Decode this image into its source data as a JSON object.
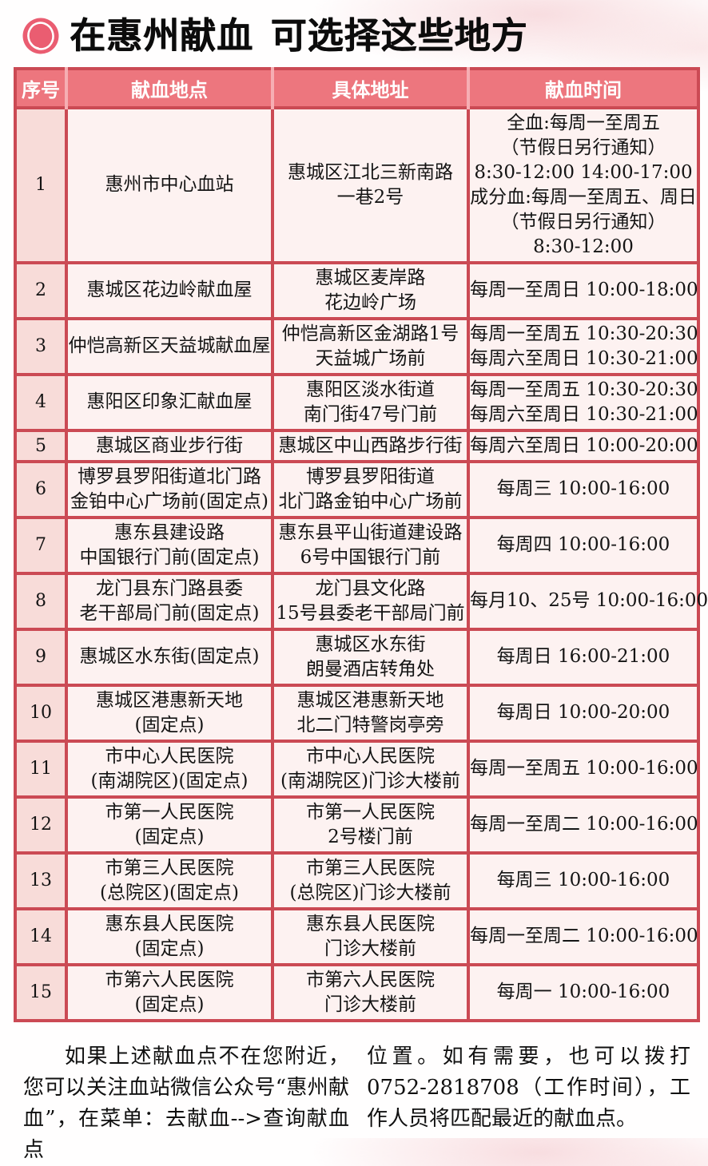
{
  "page": {
    "title": "在惠州献血 可选择这些地方"
  },
  "colors": {
    "border_red": "#cb4a54",
    "header_pink": "#ed767e",
    "header_divider": "#f6aeb3",
    "index_cell_pink": "#f8dcd9",
    "cell_pink": "#fdf2f1",
    "icon_pink": "#ea5d71"
  },
  "table": {
    "headers": [
      "序号",
      "献血地点",
      "具体地址",
      "献血时间"
    ],
    "rows": [
      {
        "no": "1",
        "place": "惠州市中心血站",
        "address": "惠城区江北三新南路\n一巷2号",
        "time": "全血:每周一至周五\n（节假日另行通知）\n8:30-12:00 14:00-17:00\n成分血:每周一至周五、周日\n（节假日另行通知）\n8:30-12:00"
      },
      {
        "no": "2",
        "place": "惠城区花边岭献血屋",
        "address": "惠城区麦岸路\n花边岭广场",
        "time": "每周一至周日 10:00-18:00"
      },
      {
        "no": "3",
        "place": "仲恺高新区天益城献血屋",
        "address": "仲恺高新区金湖路1号\n天益城广场前",
        "time": "每周一至周五 10:30-20:30\n每周六至周日 10:30-21:00"
      },
      {
        "no": "4",
        "place": "惠阳区印象汇献血屋",
        "address": "惠阳区淡水街道\n南门街47号门前",
        "time": "每周一至周五 10:30-20:30\n每周六至周日 10:30-21:00"
      },
      {
        "no": "5",
        "place": "惠城区商业步行街",
        "address": "惠城区中山西路步行街",
        "time": "每周六至周日 10:00-20:00"
      },
      {
        "no": "6",
        "place": "博罗县罗阳街道北门路\n金铂中心广场前(固定点)",
        "address": "博罗县罗阳街道\n北门路金铂中心广场前",
        "time": "每周三 10:00-16:00"
      },
      {
        "no": "7",
        "place": "惠东县建设路\n中国银行门前(固定点)",
        "address": "惠东县平山街道建设路\n6号中国银行门前",
        "time": "每周四 10:00-16:00"
      },
      {
        "no": "8",
        "place": "龙门县东门路县委\n老干部局门前(固定点)",
        "address": "龙门县文化路\n15号县委老干部局门前",
        "time": "每月10、25号 10:00-16:00"
      },
      {
        "no": "9",
        "place": "惠城区水东街(固定点)",
        "address": "惠城区水东街\n朗曼酒店转角处",
        "time": "每周日 16:00-21:00"
      },
      {
        "no": "10",
        "place": "惠城区港惠新天地\n(固定点)",
        "address": "惠城区港惠新天地\n北二门特警岗亭旁",
        "time": "每周日 10:00-20:00"
      },
      {
        "no": "11",
        "place": "市中心人民医院\n(南湖院区)(固定点)",
        "address": "市中心人民医院\n(南湖院区)门诊大楼前",
        "time": "每周一至周五 10:00-16:00"
      },
      {
        "no": "12",
        "place": "市第一人民医院\n(固定点)",
        "address": "市第一人民医院\n2号楼门前",
        "time": "每周一至周二 10:00-16:00"
      },
      {
        "no": "13",
        "place": "市第三人民医院\n(总院区)(固定点)",
        "address": "市第三人民医院\n(总院区)门诊大楼前",
        "time": "每周三 10:00-16:00"
      },
      {
        "no": "14",
        "place": "惠东县人民医院\n(固定点)",
        "address": "惠东县人民医院\n门诊大楼前",
        "time": "每周一至周二 10:00-16:00"
      },
      {
        "no": "15",
        "place": "市第六人民医院\n(固定点)",
        "address": "市第六人民医院\n门诊大楼前",
        "time": "每周一 10:00-16:00"
      }
    ]
  },
  "footer": {
    "left": "如果上述献血点不在您附近，您可以关注血站微信公众号“惠州献血”，在菜单：去献血-->查询献血点",
    "right": "位置。如有需要，也可以拨打0752-2818708（工作时间），工作人员将匹配最近的献血点。"
  }
}
